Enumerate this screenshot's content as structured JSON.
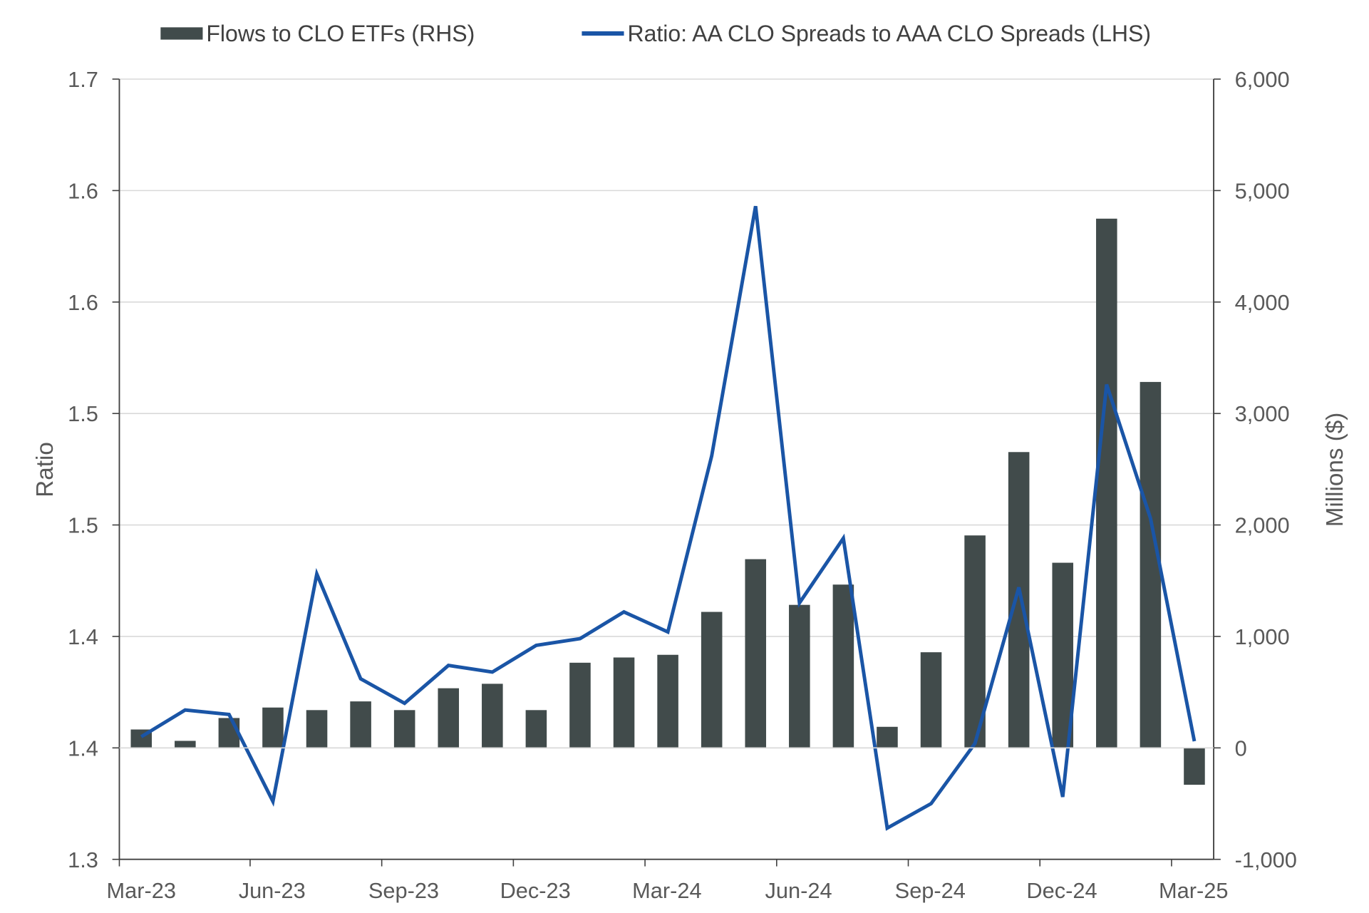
{
  "chart_data": {
    "type": "bar+line",
    "legend": {
      "position": "top",
      "items": [
        "Flows to CLO ETFs (RHS)",
        "Ratio: AA CLO Spreads to AAA CLO Spreads (LHS)"
      ]
    },
    "categories": [
      "Mar-23",
      "Apr-23",
      "May-23",
      "Jun-23",
      "Jul-23",
      "Aug-23",
      "Sep-23",
      "Oct-23",
      "Nov-23",
      "Dec-23",
      "Jan-24",
      "Feb-24",
      "Mar-24",
      "Apr-24",
      "May-24",
      "Jun-24",
      "Jul-24",
      "Aug-24",
      "Sep-24",
      "Oct-24",
      "Nov-24",
      "Dec-24",
      "Jan-25",
      "Feb-25",
      "Mar-25"
    ],
    "x_tick_labels": [
      "Mar-23",
      "Jun-23",
      "Sep-23",
      "Dec-23",
      "Mar-24",
      "Jun-24",
      "Sep-24",
      "Dec-24",
      "Mar-25"
    ],
    "series": [
      {
        "name": "Flows to CLO ETFs (RHS)",
        "type": "bar",
        "axis": "right",
        "color": "#414b4b",
        "values": [
          165,
          63,
          268,
          362,
          339,
          417,
          339,
          535,
          575,
          339,
          764,
          811,
          835,
          1220,
          1693,
          1283,
          1465,
          189,
          858,
          1906,
          2654,
          1661,
          4748,
          3283,
          -331
        ]
      },
      {
        "name": "Ratio: AA CLO Spreads to AAA CLO Spreads (LHS)",
        "type": "line",
        "axis": "left",
        "color": "#1a55a6",
        "values": [
          1.355,
          1.367,
          1.365,
          1.326,
          1.428,
          1.381,
          1.37,
          1.387,
          1.384,
          1.396,
          1.399,
          1.411,
          1.402,
          1.481,
          1.593,
          1.415,
          1.444,
          1.314,
          1.325,
          1.352,
          1.422,
          1.328,
          1.513,
          1.453,
          1.353
        ]
      }
    ],
    "ylabel_left": "Ratio",
    "ylabel_right": "Millions ($)",
    "ylim_left": [
      1.3,
      1.65
    ],
    "ylim_right": [
      -1000,
      6000
    ],
    "y_tick_labels_left": [
      "1.3",
      "1.4",
      "1.4",
      "1.5",
      "1.5",
      "1.6",
      "1.6",
      "1.7"
    ],
    "y_tick_labels_right": [
      "-1,000",
      "0",
      "1,000",
      "2,000",
      "3,000",
      "4,000",
      "5,000",
      "6,000"
    ],
    "grid": "horizontal"
  }
}
